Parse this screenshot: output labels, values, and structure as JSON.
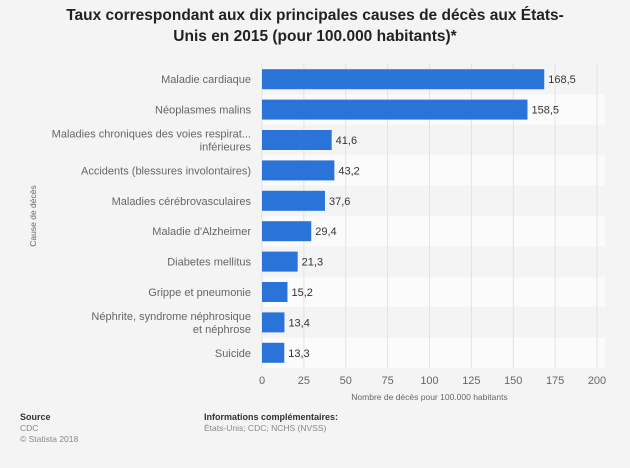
{
  "title_line1": "Taux correspondant aux dix principales causes de décès aux États-",
  "title_line2": "Unis en 2015 (pour 100.000 habitants)*",
  "chart_data": {
    "type": "bar",
    "orientation": "horizontal",
    "categories": [
      [
        "Maladie cardiaque"
      ],
      [
        "Néoplasmes malins"
      ],
      [
        "Maladies chroniques des voies respirat...",
        "inférieures"
      ],
      [
        "Accidents (blessures involontaires)"
      ],
      [
        "Maladies cérébrovasculaires"
      ],
      [
        "Maladie d'Alzheimer"
      ],
      [
        "Diabetes mellitus"
      ],
      [
        "Grippe et pneumonie"
      ],
      [
        "Néphrite, syndrome néphrosique",
        "et néphrose"
      ],
      [
        "Suicide"
      ]
    ],
    "values": [
      168.5,
      158.5,
      41.6,
      43.2,
      37.6,
      29.4,
      21.3,
      15.2,
      13.4,
      13.3
    ],
    "value_labels": [
      "168,5",
      "158,5",
      "41,6",
      "43,2",
      "37,6",
      "29,4",
      "21,3",
      "15,2",
      "13,4",
      "13,3"
    ],
    "xlim": [
      0,
      200
    ],
    "xticks": [
      "0",
      "25",
      "50",
      "75",
      "100",
      "125",
      "150",
      "175",
      "200"
    ],
    "xlabel": "Nombre de décès pour 100.000 habitants",
    "ylabel": "Cause de décès",
    "bar_color": "#2a74d9",
    "grid": true
  },
  "footer": {
    "source_title": "Source",
    "source_lines": [
      "CDC",
      "© Statista 2018"
    ],
    "info_title": "Informations complémentaires:",
    "info_lines": [
      "États-Unis; CDC; NCHS (NVSS)"
    ]
  }
}
